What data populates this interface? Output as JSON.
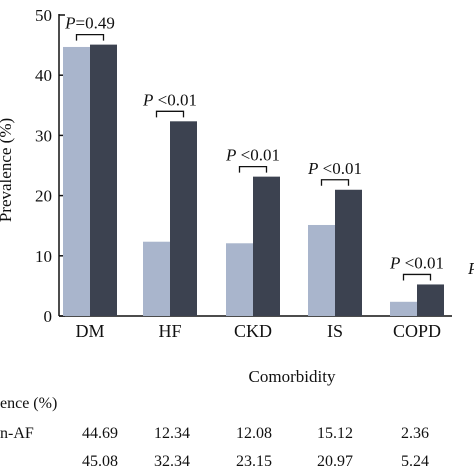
{
  "chart_data": {
    "type": "bar",
    "categories": [
      "DM",
      "HF",
      "CKD",
      "IS",
      "COPD"
    ],
    "series": [
      {
        "values": [
          44.69,
          12.34,
          12.08,
          15.12,
          2.36
        ],
        "color": "#a9b5cc"
      },
      {
        "values": [
          45.08,
          32.34,
          23.15,
          20.97,
          5.24
        ],
        "color": "#3c4250"
      }
    ],
    "ylim": [
      0,
      50
    ],
    "yticks": [
      0,
      10,
      20,
      30,
      40,
      50
    ],
    "ylabel": "Prevalence (%)",
    "xlabel": "Comorbidity",
    "pvalues": [
      "P=0.49",
      "P <0.01",
      "P <0.01",
      "P <0.01",
      "P <0.01"
    ],
    "extra_p_fragment": "P",
    "table": {
      "header": "ence (%)",
      "rows": [
        {
          "label": "n-AF",
          "values": [
            "44.69",
            "12.34",
            "12.08",
            "15.12",
            "2.36"
          ]
        },
        {
          "label": "",
          "values": [
            "45.08",
            "32.34",
            "23.15",
            "20.97",
            "5.24"
          ]
        }
      ]
    }
  }
}
